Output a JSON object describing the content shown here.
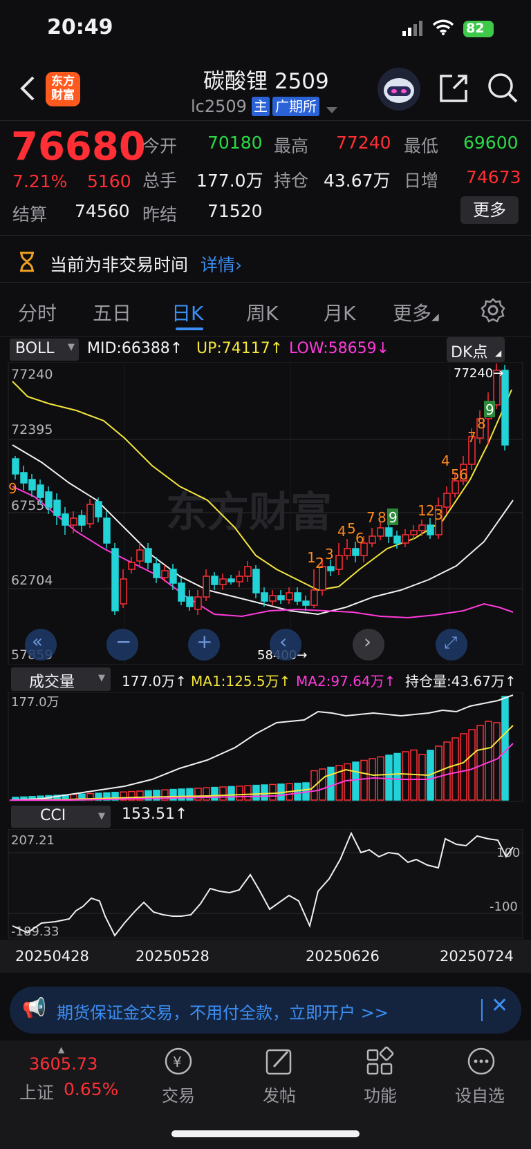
{
  "status_bar": {
    "time": "20:49",
    "battery": "82"
  },
  "header": {
    "logo_text": "东方财富",
    "title": "碳酸锂 2509",
    "code": "lc2509",
    "badge_main": "主",
    "badge_exchange": "广期所"
  },
  "quote": {
    "price": "76680",
    "change_pct": "7.21%",
    "change": "5160",
    "open_label": "今开",
    "open": "70180",
    "high_label": "最高",
    "high": "77240",
    "low_label": "最低",
    "low": "69600",
    "volume_label": "总手",
    "volume": "177.0万",
    "oi_label": "持仓",
    "oi": "43.67万",
    "daily_inc_label": "日增",
    "daily_inc": "74673",
    "settle_label": "结算",
    "settle": "74560",
    "prev_settle_label": "昨结",
    "prev_settle": "71520",
    "more": "更多"
  },
  "notice": {
    "text": "当前为非交易时间",
    "link": "详情"
  },
  "tabs": [
    {
      "label": "分时"
    },
    {
      "label": "五日"
    },
    {
      "label": "日K"
    },
    {
      "label": "周K"
    },
    {
      "label": "月K"
    },
    {
      "label": "更多"
    }
  ],
  "boll": {
    "selector": "BOLL",
    "mid": "MID:66388",
    "up": "UP:74117",
    "low": "LOW:58659",
    "dk": "DK点",
    "price_ticks": [
      "77240",
      "72395",
      "67550",
      "62704",
      "57859"
    ],
    "high_mark": "77240",
    "low_mark": "58400",
    "watermark": "东方财富"
  },
  "volume_panel": {
    "selector": "成交量",
    "vol": "177.0万",
    "ma1": "MA1:125.5万",
    "ma2": "MA2:97.64万",
    "oi": "持仓量:43.67万",
    "top_tick": "177.0万"
  },
  "cci": {
    "selector": "CCI",
    "value": "153.51",
    "ticks": [
      "207.21",
      "-189.33"
    ],
    "ref_high": "100",
    "ref_low": "-100"
  },
  "x_dates": [
    "20250428",
    "20250528",
    "20250626",
    "20250724"
  ],
  "ad": {
    "text": "期货保证金交易，不用付全款，立即开户 >>"
  },
  "bottom_nav": {
    "index_value": "3605.73",
    "index_name": "上证",
    "index_change": "0.65%",
    "items": [
      {
        "label": "交易"
      },
      {
        "label": "发帖"
      },
      {
        "label": "功能"
      },
      {
        "label": "设自选"
      }
    ]
  },
  "colors": {
    "up": "#ff2f35",
    "down": "#2ad946",
    "candle_down": "#22d4d8",
    "accent": "#3b8ff5",
    "bg": "#0e0e10"
  }
}
